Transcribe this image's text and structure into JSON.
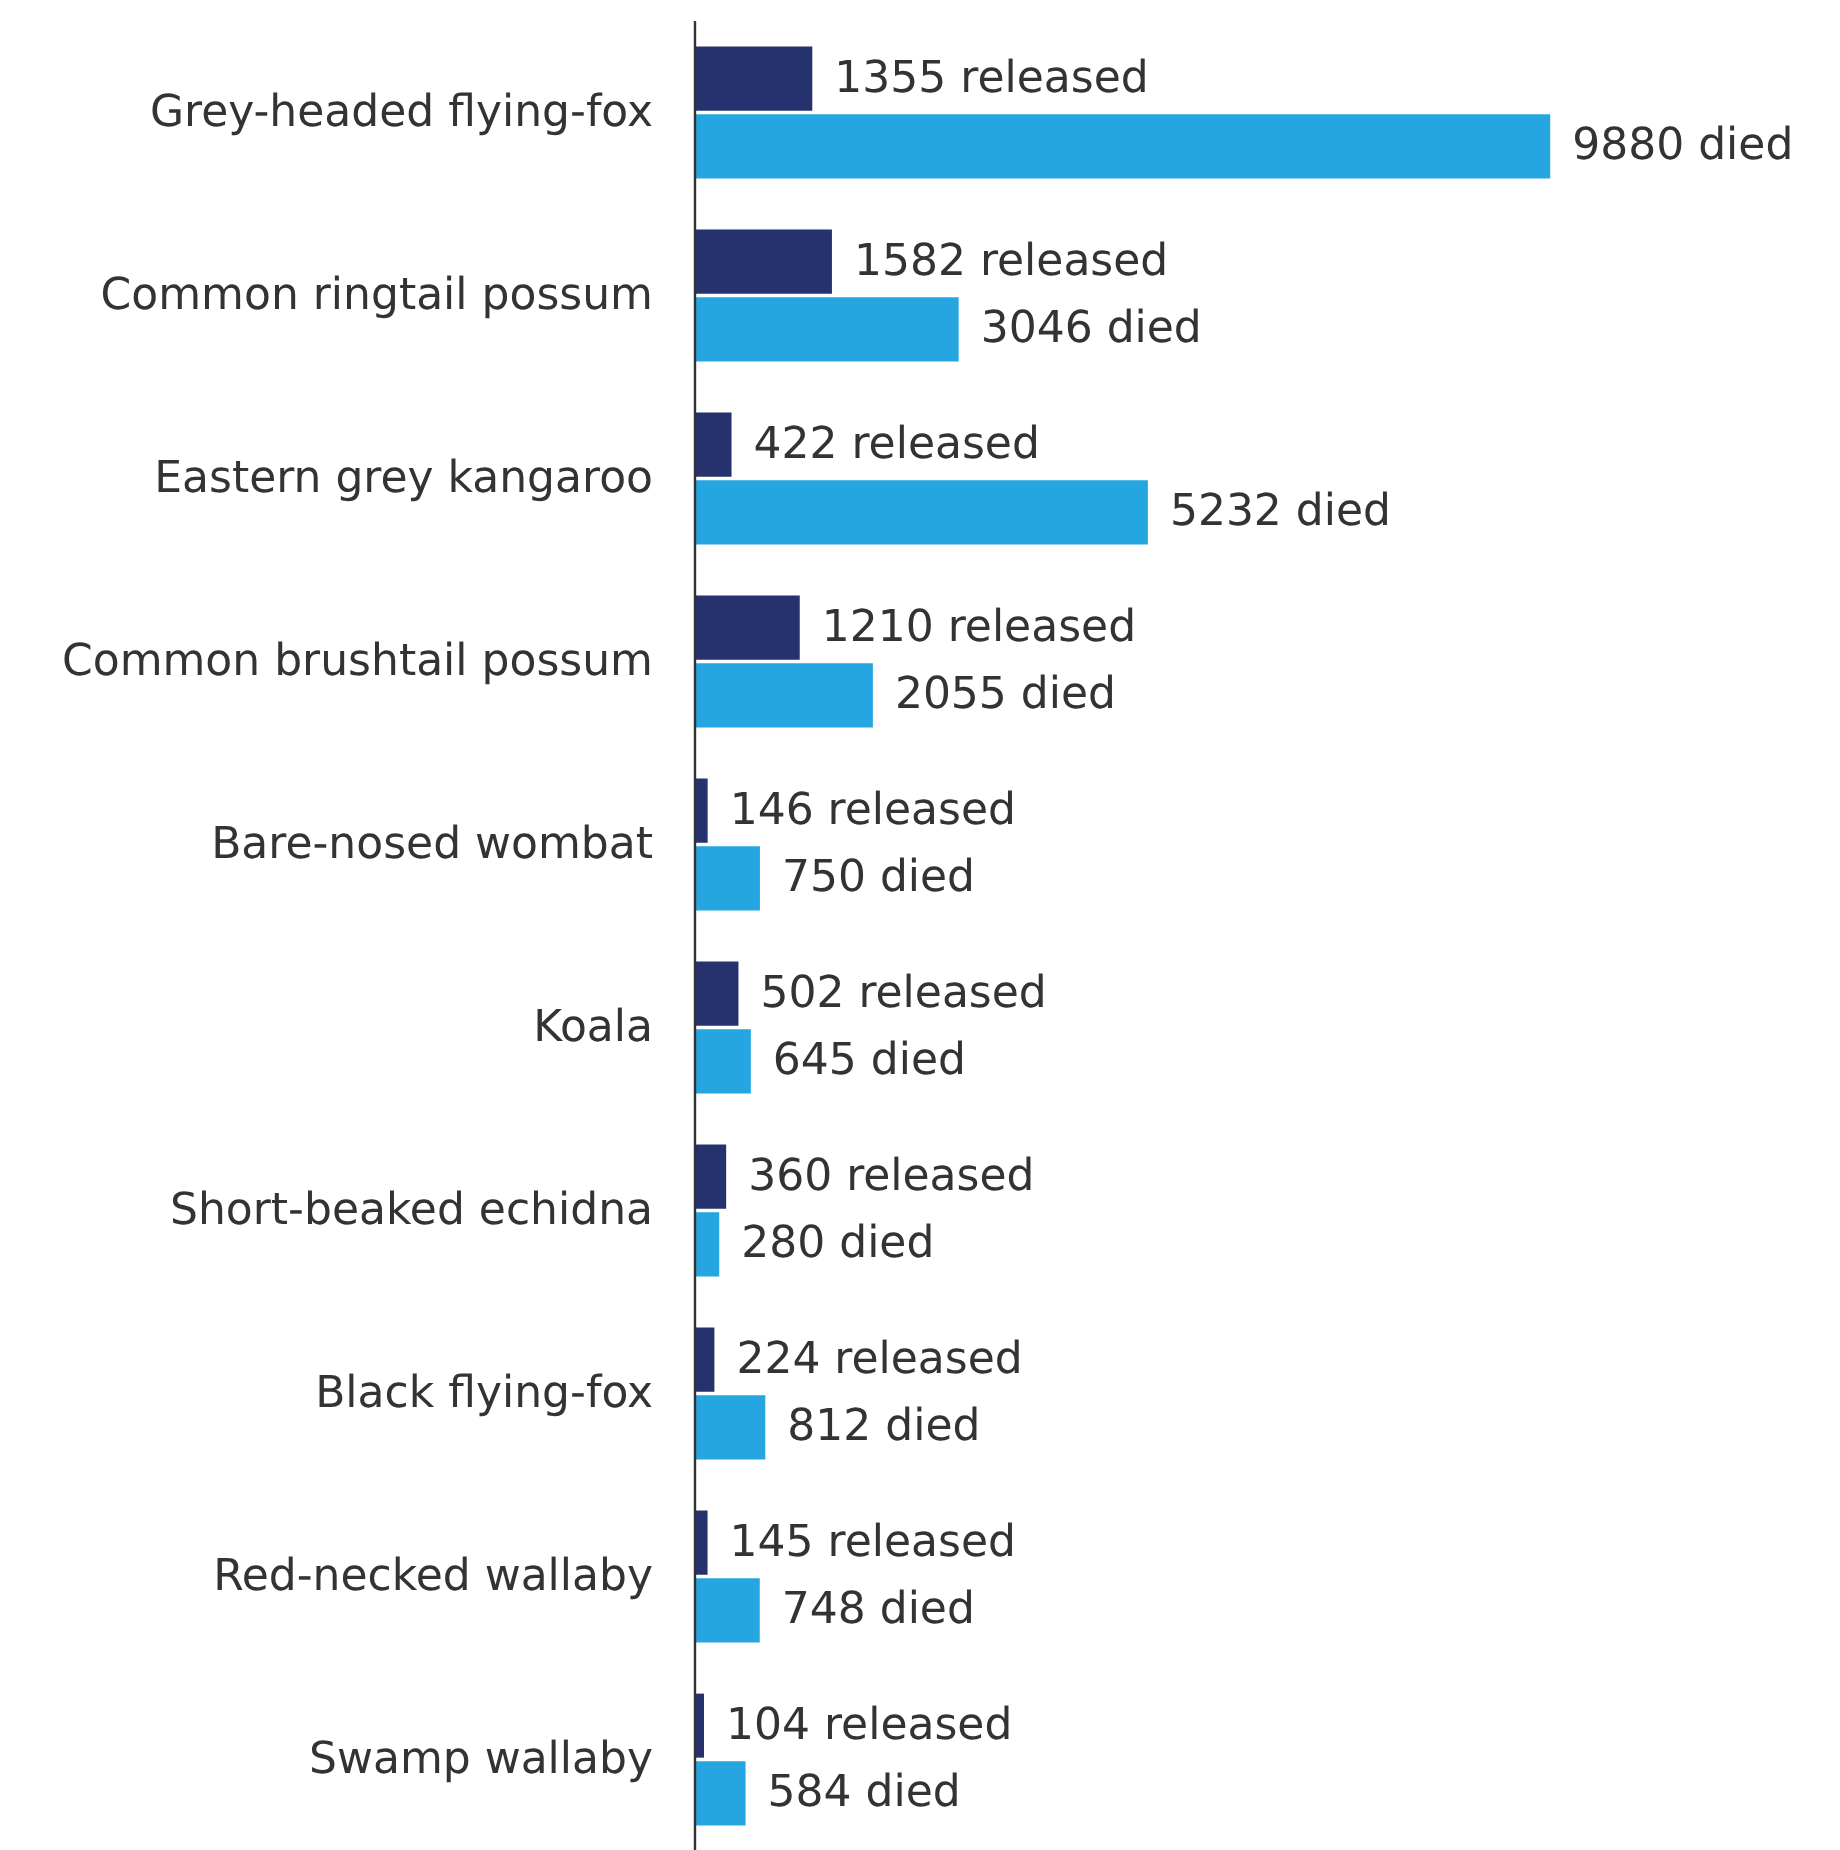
{
  "chart_data": {
    "type": "bar",
    "orientation": "horizontal",
    "categories": [
      "Grey-headed flying-fox",
      "Common ringtail possum",
      "Eastern grey kangaroo",
      "Common brushtail possum",
      "Bare-nosed wombat",
      "Koala",
      "Short-beaked echidna",
      "Black flying-fox",
      "Red-necked wallaby",
      "Swamp wallaby"
    ],
    "series": [
      {
        "color": "#25326e",
        "values": [
          1355,
          1582,
          422,
          1210,
          146,
          502,
          360,
          224,
          145,
          104
        ],
        "value_labels": [
          "1355 released",
          "1582 released",
          "422 released",
          "1210 released",
          "146 released",
          "502 released",
          "360 released",
          "224 released",
          "145 released",
          "104 released"
        ]
      },
      {
        "color": "#25a6e0",
        "values": [
          9880,
          3046,
          5232,
          2055,
          750,
          645,
          280,
          812,
          748,
          584
        ],
        "value_labels": [
          "9880 died",
          "3046 died",
          "5232 died",
          "2055 died",
          "750 died",
          "645 died",
          "280 died",
          "812 died",
          "748 died",
          "584 died"
        ]
      }
    ],
    "tick_labels": "y"
  }
}
